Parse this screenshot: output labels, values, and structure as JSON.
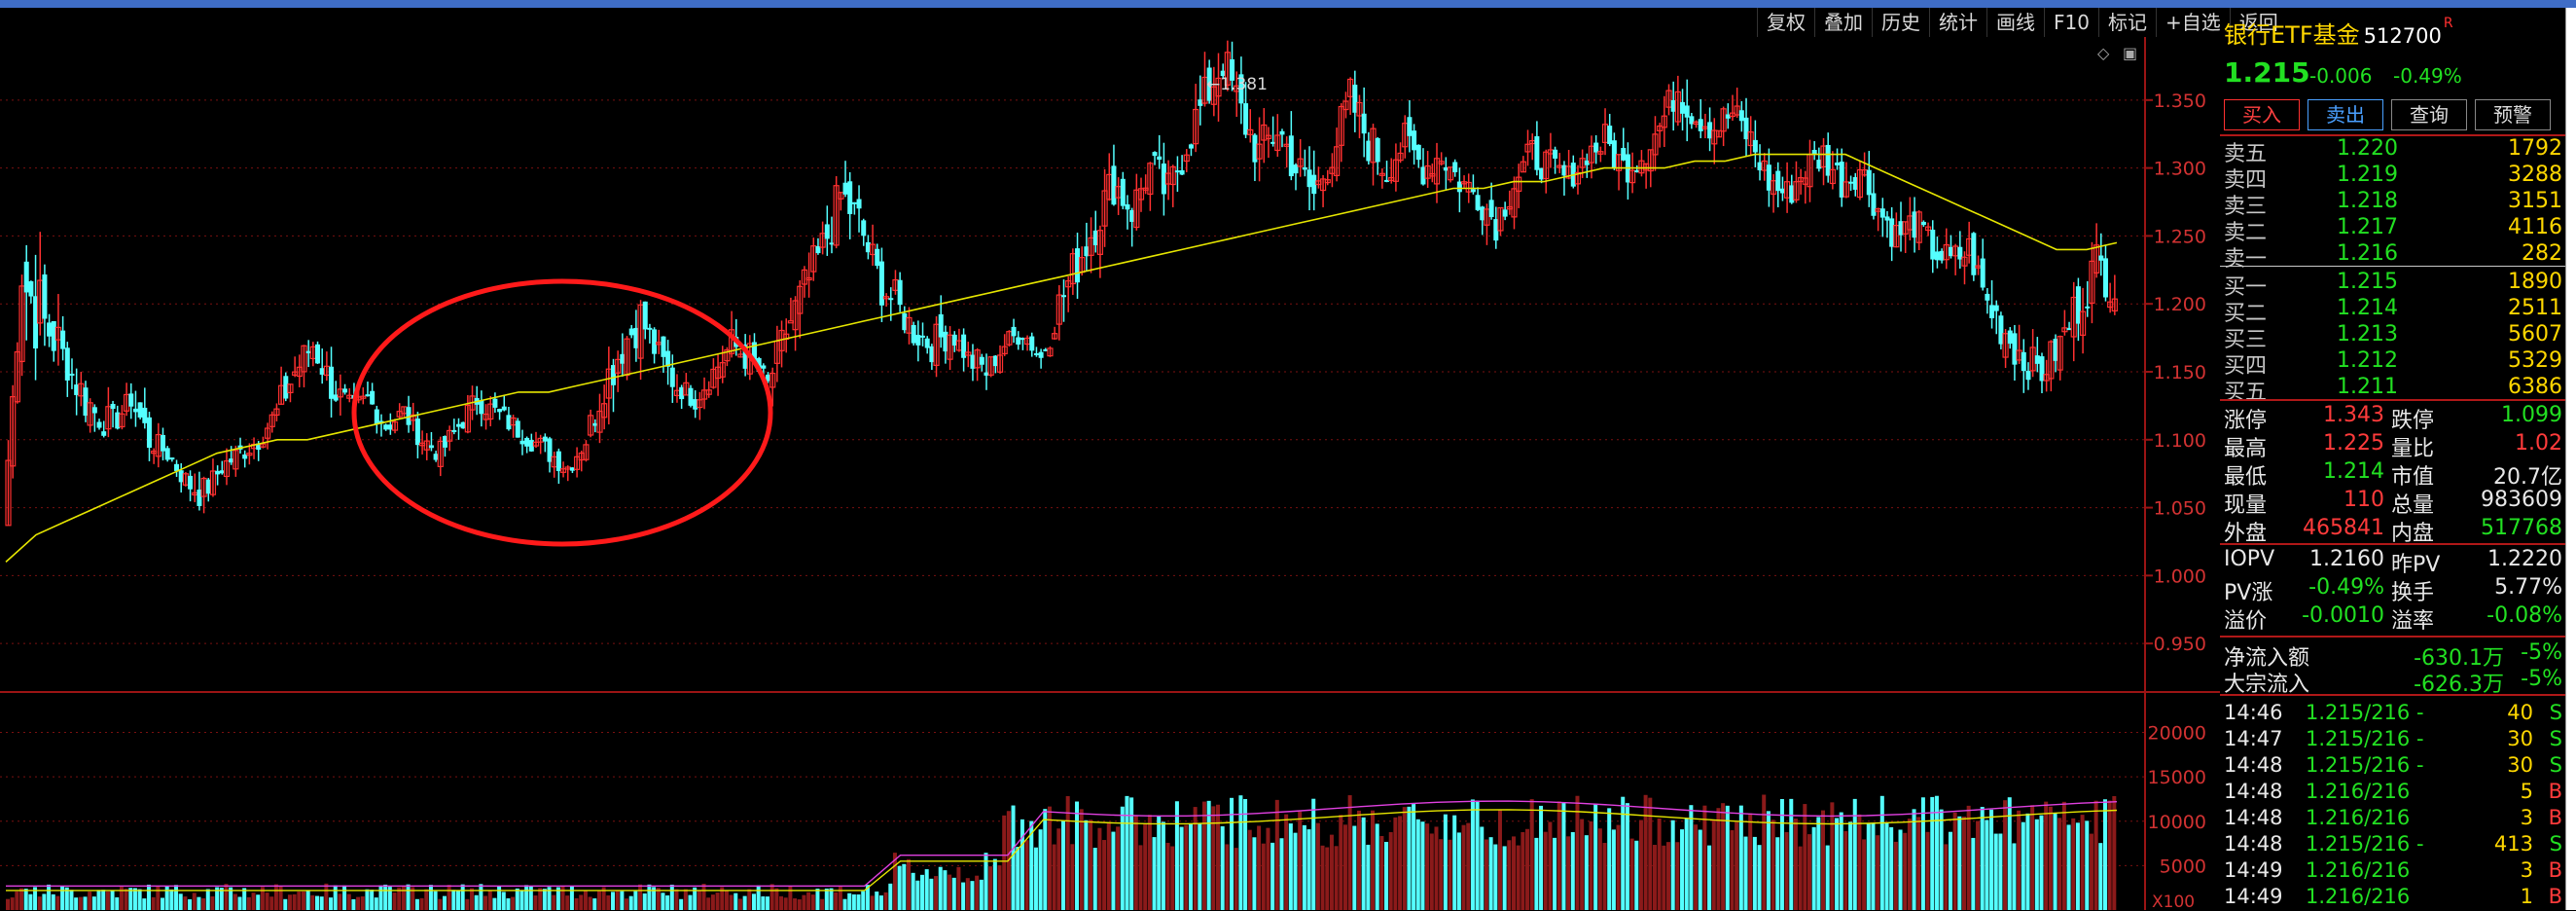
{
  "toolbar": [
    "复权",
    "叠加",
    "历史",
    "统计",
    "画线",
    "F10",
    "标记",
    "+自选",
    "返回"
  ],
  "stock": {
    "name": "银行ETF基金",
    "code": "512700",
    "mark": "R",
    "price": "1.215",
    "change": "-0.006",
    "pct": "-0.49%"
  },
  "buttons": [
    "买入",
    "卖出",
    "查询",
    "预警"
  ],
  "asks": [
    {
      "label": "卖五",
      "price": "1.220",
      "vol": "1792"
    },
    {
      "label": "卖四",
      "price": "1.219",
      "vol": "3288"
    },
    {
      "label": "卖三",
      "price": "1.218",
      "vol": "3151"
    },
    {
      "label": "卖二",
      "price": "1.217",
      "vol": "4116"
    },
    {
      "label": "卖一",
      "price": "1.216",
      "vol": "282"
    }
  ],
  "bids": [
    {
      "label": "买一",
      "price": "1.215",
      "vol": "1890"
    },
    {
      "label": "买二",
      "price": "1.214",
      "vol": "2511"
    },
    {
      "label": "买三",
      "price": "1.213",
      "vol": "5607"
    },
    {
      "label": "买四",
      "price": "1.212",
      "vol": "5329"
    },
    {
      "label": "买五",
      "price": "1.211",
      "vol": "6386"
    }
  ],
  "stats": [
    {
      "l1": "涨停",
      "v1": "1.343",
      "c1": "red",
      "l2": "跌停",
      "v2": "1.099",
      "c2": "grn"
    },
    {
      "l1": "最高",
      "v1": "1.225",
      "c1": "red",
      "l2": "量比",
      "v2": "1.02",
      "c2": "red"
    },
    {
      "l1": "最低",
      "v1": "1.214",
      "c1": "grn",
      "l2": "市值",
      "v2": "20.7亿",
      "c2": "wht"
    },
    {
      "l1": "现量",
      "v1": "110",
      "c1": "red",
      "l2": "总量",
      "v2": "983609",
      "c2": "wht"
    },
    {
      "l1": "外盘",
      "v1": "465841",
      "c1": "red",
      "l2": "内盘",
      "v2": "517768",
      "c2": "grn"
    }
  ],
  "stats2": [
    {
      "l1": "IOPV",
      "v1": "1.2160",
      "c1": "wht",
      "l2": "昨PV",
      "v2": "1.2220",
      "c2": "wht"
    },
    {
      "l1": "PV涨",
      "v1": "-0.49%",
      "c1": "grn",
      "l2": "换手",
      "v2": "5.77%",
      "c2": "wht"
    },
    {
      "l1": "溢价",
      "v1": "-0.0010",
      "c1": "grn",
      "l2": "溢率",
      "v2": "-0.08%",
      "c2": "grn"
    }
  ],
  "flows": [
    {
      "label": "净流入额",
      "v1": "-630.1万",
      "v2": "-5%"
    },
    {
      "label": "大宗流入",
      "v1": "-626.3万",
      "v2": "-5%"
    }
  ],
  "ticks": [
    {
      "time": "14:46",
      "price": "1.215/216 -",
      "vol": "40",
      "side": "S"
    },
    {
      "time": "14:47",
      "price": "1.215/216 -",
      "vol": "30",
      "side": "S"
    },
    {
      "time": "14:48",
      "price": "1.215/216 -",
      "vol": "30",
      "side": "S"
    },
    {
      "time": "14:48",
      "price": "1.216/216",
      "vol": "5",
      "side": "B"
    },
    {
      "time": "14:48",
      "price": "1.216/216",
      "vol": "3",
      "side": "B"
    },
    {
      "time": "14:48",
      "price": "1.215/216 -",
      "vol": "413",
      "side": "S"
    },
    {
      "time": "14:49",
      "price": "1.216/216",
      "vol": "3",
      "side": "B"
    },
    {
      "time": "14:49",
      "price": "1.216/216",
      "vol": "1",
      "side": "B"
    }
  ],
  "chart_data": {
    "type": "candlestick",
    "price_axis_ticks": [
      "1.350",
      "1.300",
      "1.250",
      "1.200",
      "1.150",
      "1.100",
      "1.050",
      "1.000",
      "0.950"
    ],
    "price_axis_range": [
      0.915,
      1.395
    ],
    "volume_axis_ticks": [
      "20000",
      "15000",
      "10000",
      "5000"
    ],
    "volume_axis_range": [
      0,
      24000
    ],
    "volume_scale_label": "X100",
    "high_annotation": "1.381",
    "ma_line_color": "#e6e600",
    "up_color": "#ff3030",
    "down_color": "#54ffff",
    "closes": [
      1.04,
      1.22,
      1.19,
      1.17,
      1.14,
      1.12,
      1.11,
      1.13,
      1.1,
      1.09,
      1.07,
      1.06,
      1.08,
      1.09,
      1.1,
      1.12,
      1.15,
      1.17,
      1.14,
      1.12,
      1.13,
      1.11,
      1.12,
      1.1,
      1.09,
      1.11,
      1.13,
      1.12,
      1.11,
      1.1,
      1.09,
      1.08,
      1.1,
      1.14,
      1.17,
      1.19,
      1.16,
      1.14,
      1.13,
      1.15,
      1.17,
      1.16,
      1.14,
      1.18,
      1.21,
      1.24,
      1.28,
      1.26,
      1.22,
      1.2,
      1.18,
      1.17,
      1.18,
      1.16,
      1.15,
      1.17,
      1.18,
      1.16,
      1.2,
      1.23,
      1.26,
      1.29,
      1.27,
      1.3,
      1.28,
      1.32,
      1.35,
      1.38,
      1.34,
      1.31,
      1.33,
      1.3,
      1.28,
      1.31,
      1.35,
      1.32,
      1.3,
      1.32,
      1.3,
      1.31,
      1.29,
      1.28,
      1.26,
      1.29,
      1.31,
      1.3,
      1.29,
      1.31,
      1.32,
      1.3,
      1.31,
      1.33,
      1.36,
      1.34,
      1.33,
      1.34,
      1.32,
      1.29,
      1.28,
      1.3,
      1.31,
      1.29,
      1.3,
      1.27,
      1.25,
      1.26,
      1.24,
      1.23,
      1.24,
      1.2,
      1.18,
      1.16,
      1.15,
      1.17,
      1.2,
      1.23,
      1.215
    ],
    "ranges": [
      0.03,
      0.08,
      0.05,
      0.03,
      0.04,
      0.03,
      0.02,
      0.03,
      0.02,
      0.02,
      0.03,
      0.02,
      0.02,
      0.02,
      0.02,
      0.03,
      0.03,
      0.03,
      0.03,
      0.02,
      0.02,
      0.02,
      0.02,
      0.02,
      0.02,
      0.02,
      0.02,
      0.02,
      0.02,
      0.02,
      0.02,
      0.02,
      0.03,
      0.04,
      0.04,
      0.03,
      0.03,
      0.02,
      0.02,
      0.03,
      0.03,
      0.02,
      0.03,
      0.04,
      0.04,
      0.04,
      0.04,
      0.04,
      0.04,
      0.03,
      0.03,
      0.03,
      0.02,
      0.03,
      0.02,
      0.02,
      0.02,
      0.03,
      0.04,
      0.04,
      0.04,
      0.04,
      0.03,
      0.04,
      0.04,
      0.04,
      0.04,
      0.04,
      0.04,
      0.04,
      0.04,
      0.04,
      0.03,
      0.04,
      0.04,
      0.04,
      0.03,
      0.03,
      0.03,
      0.03,
      0.03,
      0.03,
      0.03,
      0.03,
      0.03,
      0.03,
      0.02,
      0.03,
      0.03,
      0.03,
      0.03,
      0.03,
      0.04,
      0.03,
      0.03,
      0.03,
      0.03,
      0.03,
      0.03,
      0.03,
      0.03,
      0.03,
      0.03,
      0.03,
      0.03,
      0.03,
      0.03,
      0.03,
      0.03,
      0.04,
      0.04,
      0.03,
      0.03,
      0.04,
      0.04,
      0.04,
      0.02
    ],
    "ma_values": [
      1.01,
      1.03,
      1.04,
      1.05,
      1.06,
      1.07,
      1.08,
      1.09,
      1.095,
      1.1,
      1.1,
      1.105,
      1.11,
      1.115,
      1.12,
      1.125,
      1.13,
      1.135,
      1.135,
      1.14,
      1.145,
      1.15,
      1.155,
      1.16,
      1.165,
      1.17,
      1.175,
      1.18,
      1.185,
      1.19,
      1.195,
      1.2,
      1.205,
      1.21,
      1.215,
      1.22,
      1.225,
      1.23,
      1.235,
      1.24,
      1.245,
      1.25,
      1.255,
      1.26,
      1.265,
      1.27,
      1.275,
      1.28,
      1.285,
      1.285,
      1.29,
      1.29,
      1.295,
      1.3,
      1.3,
      1.3,
      1.305,
      1.305,
      1.31,
      1.31,
      1.31,
      1.31,
      1.3,
      1.29,
      1.28,
      1.27,
      1.26,
      1.25,
      1.24,
      1.24,
      1.245
    ]
  }
}
